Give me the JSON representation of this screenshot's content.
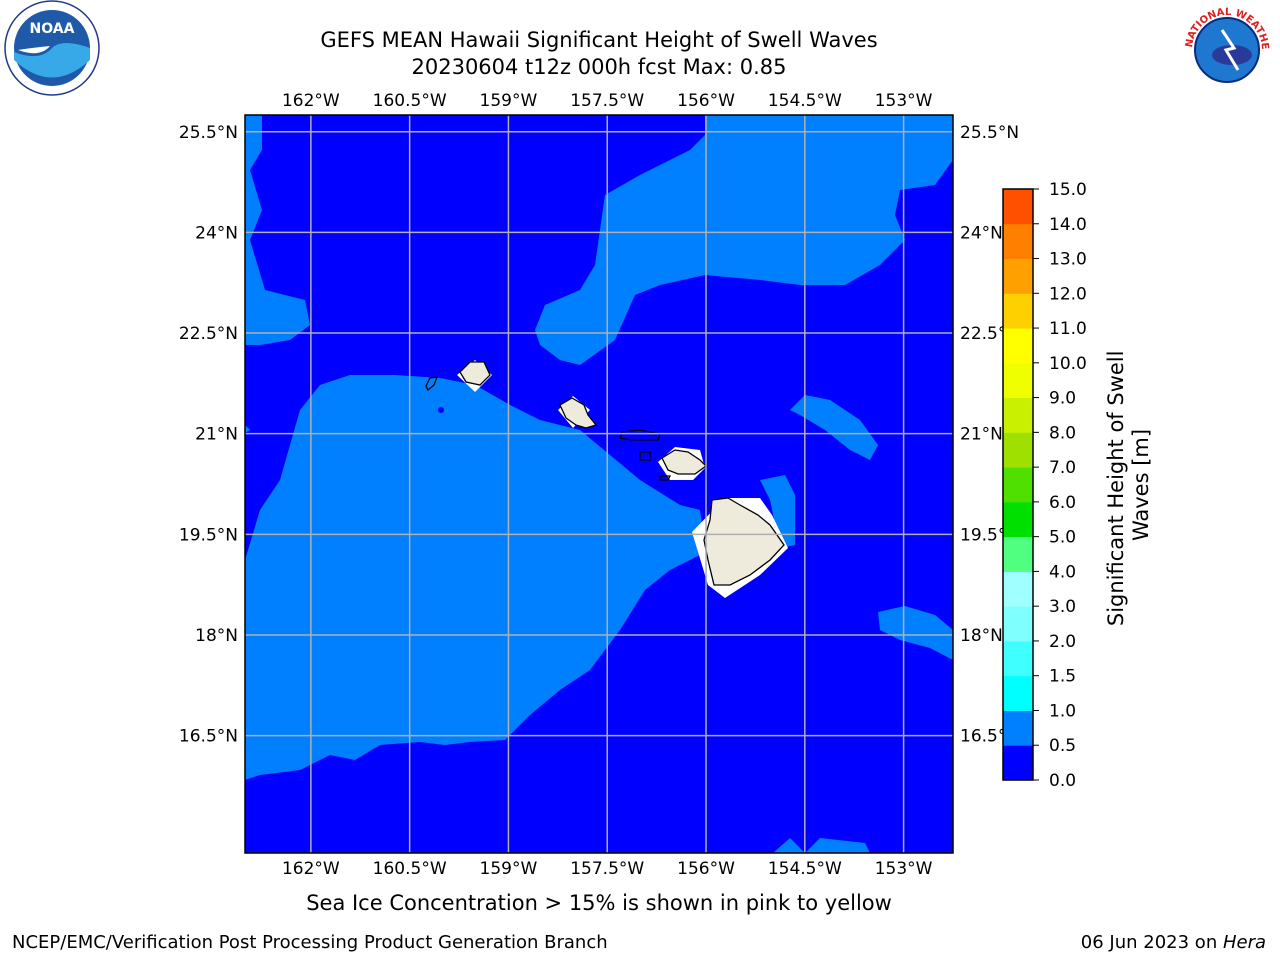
{
  "title": {
    "line1": "GEFS MEAN Hawaii Significant Height of Swell Waves",
    "line2": "20230604 t12z 000h fcst   Max: 0.85"
  },
  "map": {
    "lon_range": [
      -163,
      -152.25
    ],
    "lat_range": [
      14.75,
      25.75
    ],
    "lon_ticks": [
      {
        "v": -162,
        "label": "162°W"
      },
      {
        "v": -160.5,
        "label": "160.5°W"
      },
      {
        "v": -159,
        "label": "159°W"
      },
      {
        "v": -157.5,
        "label": "157.5°W"
      },
      {
        "v": -156,
        "label": "156°W"
      },
      {
        "v": -154.5,
        "label": "154.5°W"
      },
      {
        "v": -153,
        "label": "153°W"
      }
    ],
    "lat_ticks": [
      {
        "v": 25.5,
        "label": "25.5°N"
      },
      {
        "v": 24,
        "label": "24°N"
      },
      {
        "v": 22.5,
        "label": "22.5°N"
      },
      {
        "v": 21,
        "label": "21°N"
      },
      {
        "v": 19.5,
        "label": "19.5°N"
      },
      {
        "v": 18,
        "label": "18°N"
      },
      {
        "v": 16.5,
        "label": "16.5°N"
      }
    ],
    "colors": {
      "bin_0_0_5": "#0000ff",
      "bin_0_5_1_0": "#0080ff",
      "land": "#efebdc",
      "grid": "#b0b0b0"
    }
  },
  "colorbar": {
    "label_line1": "Significant Height of Swell",
    "label_line2": "Waves [m]",
    "ticks": [
      "0.0",
      "0.5",
      "1.0",
      "1.5",
      "2.0",
      "3.0",
      "4.0",
      "5.0",
      "6.0",
      "7.0",
      "8.0",
      "9.0",
      "10.0",
      "11.0",
      "12.0",
      "13.0",
      "14.0",
      "15.0"
    ],
    "colors": [
      "#0000ff",
      "#0080ff",
      "#00ffff",
      "#40ffff",
      "#80ffff",
      "#a0ffff",
      "#50ff80",
      "#00e000",
      "#50e000",
      "#a0e000",
      "#c8f000",
      "#f0ff00",
      "#ffff00",
      "#ffd000",
      "#ffa000",
      "#ff8000",
      "#ff5000",
      "#ff2000",
      "#ff0000"
    ]
  },
  "sea_ice_note": "Sea Ice Concentration > 15% is shown in pink to yellow",
  "footer": {
    "left": "NCEP/EMC/Verification Post Processing Product Generation Branch",
    "right_prefix": "06 Jun 2023 on ",
    "right_italic": "Hera"
  },
  "logos": {
    "noaa": "NOAA",
    "nws": "NATIONAL WEATHER SERVICE"
  }
}
